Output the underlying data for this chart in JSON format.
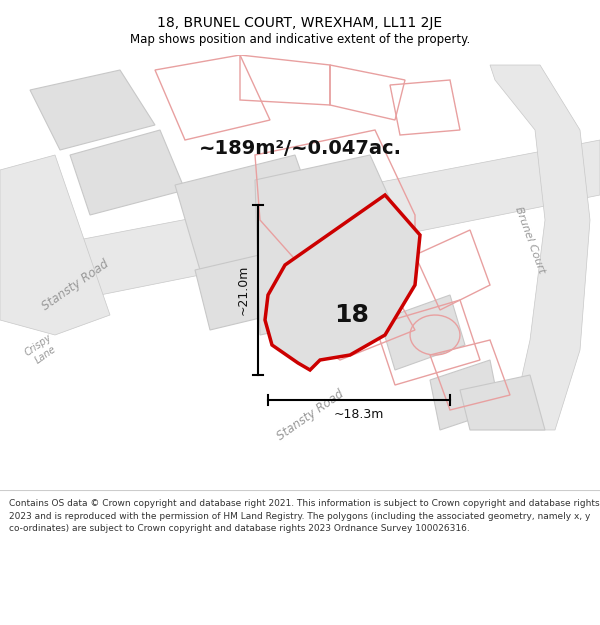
{
  "title": "18, BRUNEL COURT, WREXHAM, LL11 2JE",
  "subtitle": "Map shows position and indicative extent of the property.",
  "area_text": "~189m²/~0.047ac.",
  "label_18": "18",
  "dim_width": "~18.3m",
  "dim_height": "~21.0m",
  "road_label_stansty": "Stansty Road",
  "road_label_stansty2": "Stansty Road",
  "road_label_brunel": "Brunel Court",
  "road_label_crispy": "Crispy\nLane",
  "footer": "Contains OS data © Crown copyright and database right 2021. This information is subject to Crown copyright and database rights 2023 and is reproduced with the permission of HM Land Registry. The polygons (including the associated geometry, namely x, y co-ordinates) are subject to Crown copyright and database rights 2023 Ordnance Survey 100026316.",
  "bg_color": "#ffffff",
  "map_bg": "#ffffff",
  "road_fill": "#e8e8e8",
  "road_stroke": "#c8c8c8",
  "pink_stroke": "#e8a0a0",
  "pink_fill": "#f5e8e8",
  "building_fill": "#e0e0e0",
  "building_stroke": "#c8c8c8",
  "property_fill": "#e0e0e0",
  "property_stroke": "#cc0000",
  "dim_line_color": "#000000",
  "text_color": "#000000",
  "road_text_color": "#999999",
  "footer_text_color": "#333333",
  "footer_sep_color": "#cccccc"
}
